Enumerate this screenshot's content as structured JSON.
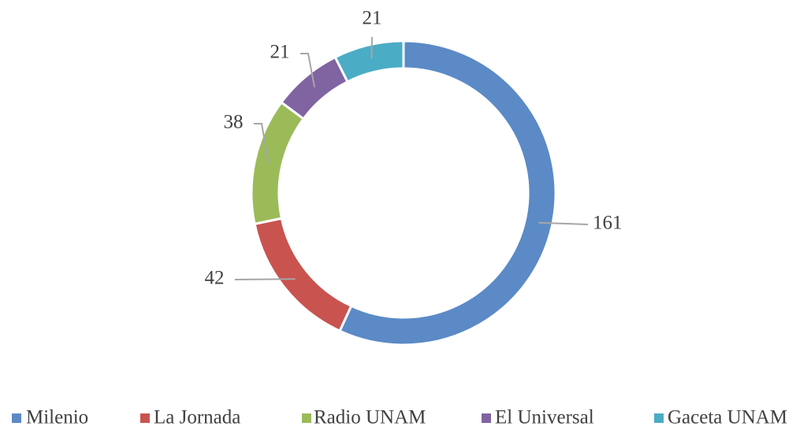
{
  "chart_data": {
    "type": "donut",
    "categories": [
      "Milenio",
      "La Jornada",
      "Radio UNAM",
      "El Universal",
      "Gaceta UNAM"
    ],
    "values": [
      161,
      42,
      38,
      21,
      21
    ],
    "colors": [
      "#5b8ac6",
      "#c9534f",
      "#9bbb59",
      "#8064a2",
      "#4bacc6"
    ],
    "legend": "bottom"
  }
}
